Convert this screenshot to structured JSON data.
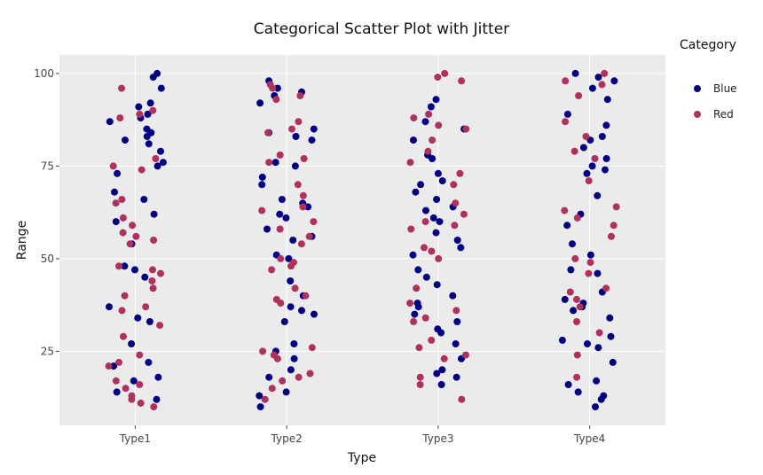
{
  "chart_data": {
    "type": "scatter",
    "title": "Categorical Scatter Plot with Jitter",
    "xlabel": "Type",
    "ylabel": "Range",
    "categories": [
      "Type1",
      "Type2",
      "Type3",
      "Type4"
    ],
    "ylim": [
      5,
      105
    ],
    "yticks": [
      25,
      50,
      75,
      100
    ],
    "grid": true,
    "legend": {
      "title": "Category",
      "position": "top-right"
    },
    "colors": {
      "Blue": "#000080",
      "Red": "#b03060",
      "panel": "#ebebeb",
      "grid": "#ffffff"
    },
    "series": [
      {
        "name": "Blue",
        "points": [
          [
            "Type1",
            100
          ],
          [
            "Type1",
            99
          ],
          [
            "Type1",
            96
          ],
          [
            "Type1",
            92
          ],
          [
            "Type1",
            91
          ],
          [
            "Type1",
            89
          ],
          [
            "Type1",
            88
          ],
          [
            "Type1",
            87
          ],
          [
            "Type1",
            85
          ],
          [
            "Type1",
            84
          ],
          [
            "Type1",
            83
          ],
          [
            "Type1",
            82
          ],
          [
            "Type1",
            81
          ],
          [
            "Type1",
            79
          ],
          [
            "Type1",
            76
          ],
          [
            "Type1",
            75
          ],
          [
            "Type1",
            73
          ],
          [
            "Type1",
            68
          ],
          [
            "Type1",
            66
          ],
          [
            "Type1",
            62
          ],
          [
            "Type1",
            60
          ],
          [
            "Type1",
            54
          ],
          [
            "Type1",
            48
          ],
          [
            "Type1",
            47
          ],
          [
            "Type1",
            45
          ],
          [
            "Type1",
            37
          ],
          [
            "Type1",
            34
          ],
          [
            "Type1",
            33
          ],
          [
            "Type1",
            27
          ],
          [
            "Type1",
            22
          ],
          [
            "Type1",
            21
          ],
          [
            "Type1",
            18
          ],
          [
            "Type1",
            17
          ],
          [
            "Type1",
            14
          ],
          [
            "Type1",
            12
          ],
          [
            "Type2",
            98
          ],
          [
            "Type2",
            96
          ],
          [
            "Type2",
            95
          ],
          [
            "Type2",
            94
          ],
          [
            "Type2",
            92
          ],
          [
            "Type2",
            85
          ],
          [
            "Type2",
            84
          ],
          [
            "Type2",
            83
          ],
          [
            "Type2",
            82
          ],
          [
            "Type2",
            76
          ],
          [
            "Type2",
            75
          ],
          [
            "Type2",
            72
          ],
          [
            "Type2",
            70
          ],
          [
            "Type2",
            66
          ],
          [
            "Type2",
            65
          ],
          [
            "Type2",
            64
          ],
          [
            "Type2",
            62
          ],
          [
            "Type2",
            61
          ],
          [
            "Type2",
            58
          ],
          [
            "Type2",
            56
          ],
          [
            "Type2",
            55
          ],
          [
            "Type2",
            51
          ],
          [
            "Type2",
            50
          ],
          [
            "Type2",
            44
          ],
          [
            "Type2",
            40
          ],
          [
            "Type2",
            37
          ],
          [
            "Type2",
            36
          ],
          [
            "Type2",
            35
          ],
          [
            "Type2",
            33
          ],
          [
            "Type2",
            27
          ],
          [
            "Type2",
            25
          ],
          [
            "Type2",
            23
          ],
          [
            "Type2",
            20
          ],
          [
            "Type2",
            18
          ],
          [
            "Type2",
            14
          ],
          [
            "Type2",
            13
          ],
          [
            "Type2",
            10
          ],
          [
            "Type3",
            93
          ],
          [
            "Type3",
            91
          ],
          [
            "Type3",
            87
          ],
          [
            "Type3",
            85
          ],
          [
            "Type3",
            82
          ],
          [
            "Type3",
            78
          ],
          [
            "Type3",
            77
          ],
          [
            "Type3",
            73
          ],
          [
            "Type3",
            71
          ],
          [
            "Type3",
            70
          ],
          [
            "Type3",
            68
          ],
          [
            "Type3",
            66
          ],
          [
            "Type3",
            64
          ],
          [
            "Type3",
            63
          ],
          [
            "Type3",
            61
          ],
          [
            "Type3",
            60
          ],
          [
            "Type3",
            57
          ],
          [
            "Type3",
            55
          ],
          [
            "Type3",
            53
          ],
          [
            "Type3",
            51
          ],
          [
            "Type3",
            47
          ],
          [
            "Type3",
            45
          ],
          [
            "Type3",
            43
          ],
          [
            "Type3",
            40
          ],
          [
            "Type3",
            38
          ],
          [
            "Type3",
            37
          ],
          [
            "Type3",
            35
          ],
          [
            "Type3",
            33
          ],
          [
            "Type3",
            31
          ],
          [
            "Type3",
            30
          ],
          [
            "Type3",
            27
          ],
          [
            "Type3",
            23
          ],
          [
            "Type3",
            20
          ],
          [
            "Type3",
            19
          ],
          [
            "Type3",
            18
          ],
          [
            "Type3",
            16
          ],
          [
            "Type4",
            100
          ],
          [
            "Type4",
            99
          ],
          [
            "Type4",
            98
          ],
          [
            "Type4",
            96
          ],
          [
            "Type4",
            93
          ],
          [
            "Type4",
            89
          ],
          [
            "Type4",
            86
          ],
          [
            "Type4",
            83
          ],
          [
            "Type4",
            82
          ],
          [
            "Type4",
            80
          ],
          [
            "Type4",
            77
          ],
          [
            "Type4",
            75
          ],
          [
            "Type4",
            74
          ],
          [
            "Type4",
            73
          ],
          [
            "Type4",
            67
          ],
          [
            "Type4",
            62
          ],
          [
            "Type4",
            59
          ],
          [
            "Type4",
            54
          ],
          [
            "Type4",
            51
          ],
          [
            "Type4",
            47
          ],
          [
            "Type4",
            46
          ],
          [
            "Type4",
            41
          ],
          [
            "Type4",
            39
          ],
          [
            "Type4",
            38
          ],
          [
            "Type4",
            37
          ],
          [
            "Type4",
            36
          ],
          [
            "Type4",
            34
          ],
          [
            "Type4",
            29
          ],
          [
            "Type4",
            28
          ],
          [
            "Type4",
            27
          ],
          [
            "Type4",
            26
          ],
          [
            "Type4",
            22
          ],
          [
            "Type4",
            17
          ],
          [
            "Type4",
            16
          ],
          [
            "Type4",
            14
          ],
          [
            "Type4",
            13
          ],
          [
            "Type4",
            12
          ],
          [
            "Type4",
            10
          ]
        ]
      },
      {
        "name": "Red",
        "points": [
          [
            "Type1",
            96
          ],
          [
            "Type1",
            90
          ],
          [
            "Type1",
            88
          ],
          [
            "Type1",
            89
          ],
          [
            "Type1",
            77
          ],
          [
            "Type1",
            74
          ],
          [
            "Type1",
            75
          ],
          [
            "Type1",
            66
          ],
          [
            "Type1",
            65
          ],
          [
            "Type1",
            61
          ],
          [
            "Type1",
            59
          ],
          [
            "Type1",
            57
          ],
          [
            "Type1",
            56
          ],
          [
            "Type1",
            55
          ],
          [
            "Type1",
            54
          ],
          [
            "Type1",
            48
          ],
          [
            "Type1",
            47
          ],
          [
            "Type1",
            46
          ],
          [
            "Type1",
            44
          ],
          [
            "Type1",
            42
          ],
          [
            "Type1",
            40
          ],
          [
            "Type1",
            37
          ],
          [
            "Type1",
            36
          ],
          [
            "Type1",
            32
          ],
          [
            "Type1",
            29
          ],
          [
            "Type1",
            24
          ],
          [
            "Type1",
            22
          ],
          [
            "Type1",
            21
          ],
          [
            "Type1",
            17
          ],
          [
            "Type1",
            16
          ],
          [
            "Type1",
            15
          ],
          [
            "Type1",
            13
          ],
          [
            "Type1",
            12
          ],
          [
            "Type1",
            11
          ],
          [
            "Type1",
            10
          ],
          [
            "Type2",
            97
          ],
          [
            "Type2",
            96
          ],
          [
            "Type2",
            94
          ],
          [
            "Type2",
            93
          ],
          [
            "Type2",
            87
          ],
          [
            "Type2",
            85
          ],
          [
            "Type2",
            84
          ],
          [
            "Type2",
            78
          ],
          [
            "Type2",
            77
          ],
          [
            "Type2",
            76
          ],
          [
            "Type2",
            70
          ],
          [
            "Type2",
            67
          ],
          [
            "Type2",
            64
          ],
          [
            "Type2",
            63
          ],
          [
            "Type2",
            60
          ],
          [
            "Type2",
            58
          ],
          [
            "Type2",
            56
          ],
          [
            "Type2",
            54
          ],
          [
            "Type2",
            50
          ],
          [
            "Type2",
            49
          ],
          [
            "Type2",
            48
          ],
          [
            "Type2",
            47
          ],
          [
            "Type2",
            42
          ],
          [
            "Type2",
            40
          ],
          [
            "Type2",
            39
          ],
          [
            "Type2",
            38
          ],
          [
            "Type2",
            26
          ],
          [
            "Type2",
            25
          ],
          [
            "Type2",
            24
          ],
          [
            "Type2",
            23
          ],
          [
            "Type2",
            19
          ],
          [
            "Type2",
            18
          ],
          [
            "Type2",
            17
          ],
          [
            "Type2",
            15
          ],
          [
            "Type2",
            12
          ],
          [
            "Type3",
            100
          ],
          [
            "Type3",
            99
          ],
          [
            "Type3",
            98
          ],
          [
            "Type3",
            89
          ],
          [
            "Type3",
            88
          ],
          [
            "Type3",
            86
          ],
          [
            "Type3",
            85
          ],
          [
            "Type3",
            82
          ],
          [
            "Type3",
            79
          ],
          [
            "Type3",
            76
          ],
          [
            "Type3",
            73
          ],
          [
            "Type3",
            70
          ],
          [
            "Type3",
            65
          ],
          [
            "Type3",
            62
          ],
          [
            "Type3",
            60
          ],
          [
            "Type3",
            59
          ],
          [
            "Type3",
            58
          ],
          [
            "Type3",
            53
          ],
          [
            "Type3",
            52
          ],
          [
            "Type3",
            50
          ],
          [
            "Type3",
            42
          ],
          [
            "Type3",
            38
          ],
          [
            "Type3",
            36
          ],
          [
            "Type3",
            34
          ],
          [
            "Type3",
            33
          ],
          [
            "Type3",
            28
          ],
          [
            "Type3",
            26
          ],
          [
            "Type3",
            24
          ],
          [
            "Type3",
            23
          ],
          [
            "Type3",
            18
          ],
          [
            "Type3",
            16
          ],
          [
            "Type3",
            12
          ],
          [
            "Type4",
            100
          ],
          [
            "Type4",
            98
          ],
          [
            "Type4",
            97
          ],
          [
            "Type4",
            94
          ],
          [
            "Type4",
            87
          ],
          [
            "Type4",
            83
          ],
          [
            "Type4",
            79
          ],
          [
            "Type4",
            77
          ],
          [
            "Type4",
            71
          ],
          [
            "Type4",
            64
          ],
          [
            "Type4",
            63
          ],
          [
            "Type4",
            61
          ],
          [
            "Type4",
            59
          ],
          [
            "Type4",
            56
          ],
          [
            "Type4",
            50
          ],
          [
            "Type4",
            49
          ],
          [
            "Type4",
            46
          ],
          [
            "Type4",
            42
          ],
          [
            "Type4",
            41
          ],
          [
            "Type4",
            39
          ],
          [
            "Type4",
            37
          ],
          [
            "Type4",
            33
          ],
          [
            "Type4",
            30
          ],
          [
            "Type4",
            24
          ],
          [
            "Type4",
            18
          ]
        ]
      }
    ]
  }
}
